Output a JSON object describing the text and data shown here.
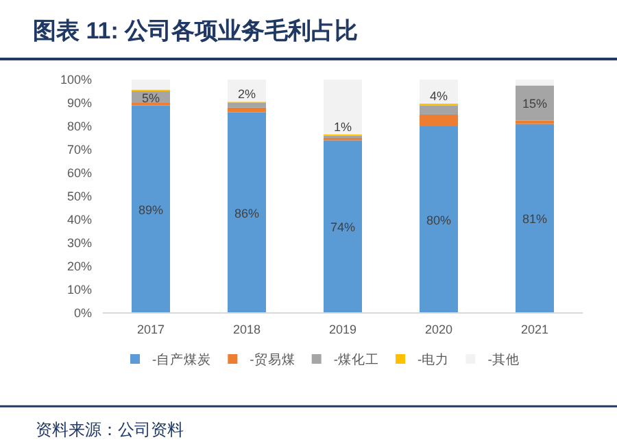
{
  "chart_data": {
    "type": "bar",
    "stacked": true,
    "title": "图表 11: 公司各项业务毛利占比",
    "categories": [
      "2017",
      "2018",
      "2019",
      "2020",
      "2021"
    ],
    "series": [
      {
        "name": "-自产煤炭",
        "color": "#5b9bd5",
        "values": [
          89,
          86,
          74,
          80,
          81
        ],
        "value_labels": [
          "89%",
          "86%",
          "74%",
          "80%",
          "81%"
        ]
      },
      {
        "name": "-贸易煤",
        "color": "#ed7d31",
        "values": [
          1,
          2,
          1,
          5,
          1.5
        ]
      },
      {
        "name": "-煤化工",
        "color": "#a5a5a5",
        "values": [
          5,
          2,
          1,
          4,
          15
        ],
        "value_labels": [
          "5%",
          "2%",
          "1%",
          "4%",
          "15%"
        ]
      },
      {
        "name": "-电力",
        "color": "#ffc000",
        "values": [
          0.7,
          0.5,
          0.5,
          0.7,
          0
        ]
      },
      {
        "name": "-其他",
        "color": "#f2f2f2",
        "values": [
          4.3,
          9.5,
          23.5,
          10.3,
          2.5
        ]
      }
    ],
    "ylim": [
      0,
      100
    ],
    "yticks": [
      {
        "value": 0,
        "label": "0%"
      },
      {
        "value": 10,
        "label": "10%"
      },
      {
        "value": 20,
        "label": "20%"
      },
      {
        "value": 30,
        "label": "30%"
      },
      {
        "value": 40,
        "label": "40%"
      },
      {
        "value": 50,
        "label": "50%"
      },
      {
        "value": 60,
        "label": "60%"
      },
      {
        "value": 70,
        "label": "70%"
      },
      {
        "value": 80,
        "label": "80%"
      },
      {
        "value": 90,
        "label": "90%"
      },
      {
        "value": 100,
        "label": "100%"
      }
    ],
    "grid": false,
    "legend": "bottom",
    "annotations": [
      "资料来源：公司资料"
    ]
  }
}
